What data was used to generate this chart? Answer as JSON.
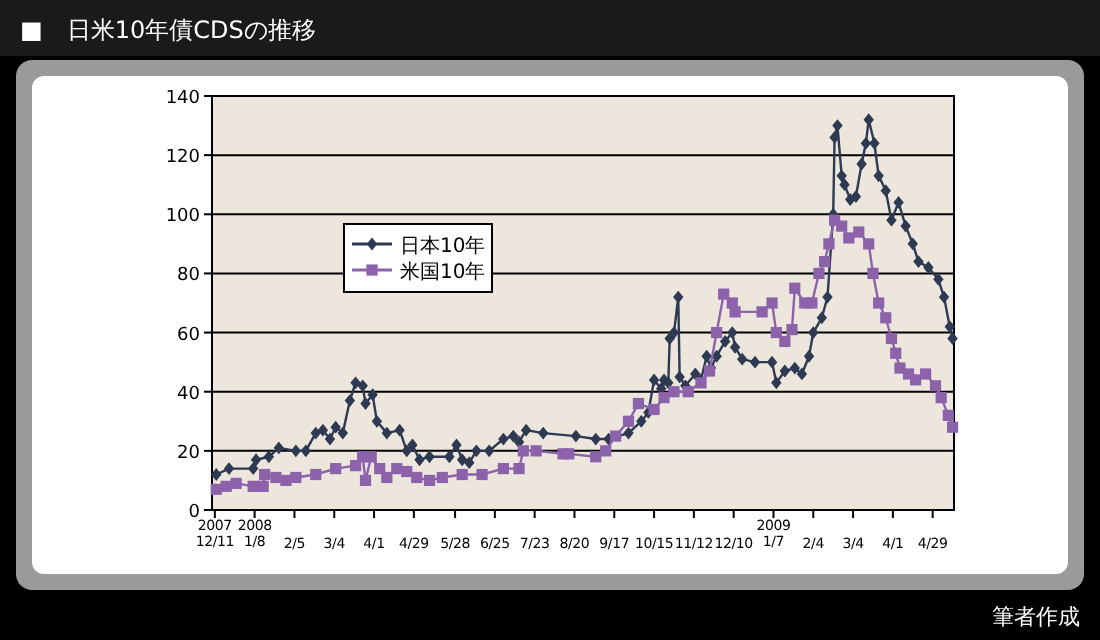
{
  "chart_data": {
    "type": "line",
    "title": "■　日米10年債CDSの推移",
    "annotations": [
      "筆者作成"
    ],
    "legend": "left",
    "grid": "y",
    "line_style": "solid",
    "ylim": [
      0,
      140
    ],
    "yticks": [
      0,
      20,
      40,
      60,
      80,
      100,
      120,
      140
    ],
    "xlim": [
      "2007-12-09",
      "2009-05-14"
    ],
    "xticks": [
      {
        "value": "2007-12-11",
        "label": "2007\n12/11"
      },
      {
        "value": "2008-01-08",
        "label": "2008\n1/8"
      },
      {
        "value": "2008-02-05",
        "label": "2/5"
      },
      {
        "value": "2008-03-04",
        "label": "3/4"
      },
      {
        "value": "2008-04-01",
        "label": "4/1"
      },
      {
        "value": "2008-04-29",
        "label": "4/29"
      },
      {
        "value": "2008-05-28",
        "label": "5/28"
      },
      {
        "value": "2008-06-25",
        "label": "6/25"
      },
      {
        "value": "2008-07-23",
        "label": "7/23"
      },
      {
        "value": "2008-08-20",
        "label": "8/20"
      },
      {
        "value": "2008-09-17",
        "label": "9/17"
      },
      {
        "value": "2008-10-15",
        "label": "10/15"
      },
      {
        "value": "2008-11-12",
        "label": "11/12"
      },
      {
        "value": "2008-12-10",
        "label": "12/10"
      },
      {
        "value": "2009-01-07",
        "label": "2009\n1/7"
      },
      {
        "value": "2009-02-04",
        "label": "2/4"
      },
      {
        "value": "2009-03-04",
        "label": "3/4"
      },
      {
        "value": "2009-04-01",
        "label": "4/1"
      },
      {
        "value": "2009-04-29",
        "label": "4/29"
      }
    ],
    "series": [
      {
        "name": "日本10年",
        "color": "#2d3a52",
        "marker": "diamond",
        "x": [
          "2007-12-12",
          "2007-12-21",
          "2008-01-07",
          "2008-01-09",
          "2008-01-18",
          "2008-01-25",
          "2008-02-06",
          "2008-02-13",
          "2008-02-20",
          "2008-02-25",
          "2008-03-01",
          "2008-03-05",
          "2008-03-10",
          "2008-03-15",
          "2008-03-19",
          "2008-03-24",
          "2008-03-26",
          "2008-03-31",
          "2008-04-03",
          "2008-04-10",
          "2008-04-19",
          "2008-04-24",
          "2008-04-28",
          "2008-05-03",
          "2008-05-10",
          "2008-05-24",
          "2008-05-29",
          "2008-06-02",
          "2008-06-07",
          "2008-06-12",
          "2008-06-21",
          "2008-07-01",
          "2008-07-08",
          "2008-07-12",
          "2008-07-17",
          "2008-07-29",
          "2008-08-21",
          "2008-09-04",
          "2008-09-13",
          "2008-09-27",
          "2008-10-06",
          "2008-10-11",
          "2008-10-15",
          "2008-10-20",
          "2008-10-22",
          "2008-10-25",
          "2008-10-26",
          "2008-10-29",
          "2008-11-01",
          "2008-11-02",
          "2008-11-06",
          "2008-11-13",
          "2008-11-17",
          "2008-11-21",
          "2008-11-24",
          "2008-11-28",
          "2008-12-04",
          "2008-12-09",
          "2008-12-11",
          "2008-12-16",
          "2008-12-25",
          "2009-01-06",
          "2009-01-09",
          "2009-01-15",
          "2009-01-22",
          "2009-01-27",
          "2009-02-01",
          "2009-02-04",
          "2009-02-10",
          "2009-02-14",
          "2009-02-18",
          "2009-02-19",
          "2009-02-21",
          "2009-02-24",
          "2009-02-26",
          "2009-03-02",
          "2009-03-06",
          "2009-03-10",
          "2009-03-13",
          "2009-03-15",
          "2009-03-19",
          "2009-03-22",
          "2009-03-27",
          "2009-03-31",
          "2009-04-05",
          "2009-04-10",
          "2009-04-15",
          "2009-04-19",
          "2009-04-26",
          "2009-05-03",
          "2009-05-07",
          "2009-05-11",
          "2009-05-13"
        ],
        "values": [
          12,
          14,
          14,
          17,
          18,
          21,
          20,
          20,
          26,
          27,
          24,
          28,
          26,
          37,
          43,
          42,
          36,
          39,
          30,
          26,
          27,
          20,
          22,
          17,
          18,
          18,
          22,
          17,
          16,
          20,
          20,
          24,
          25,
          23,
          27,
          26,
          25,
          24,
          24,
          26,
          30,
          33,
          44,
          41,
          44,
          43,
          58,
          60,
          72,
          45,
          42,
          46,
          44,
          52,
          48,
          52,
          57,
          60,
          55,
          51,
          50,
          50,
          43,
          47,
          48,
          46,
          52,
          60,
          65,
          72,
          100,
          126,
          130,
          113,
          110,
          105,
          106,
          117,
          124,
          132,
          124,
          113,
          108,
          98,
          104,
          96,
          90,
          84,
          82,
          78,
          72,
          62,
          58
        ]
      },
      {
        "name": "米国10年",
        "color": "#8c62aa",
        "marker": "square",
        "x": [
          "2007-12-12",
          "2007-12-19",
          "2007-12-26",
          "2008-01-07",
          "2008-01-14",
          "2008-01-15",
          "2008-01-23",
          "2008-01-30",
          "2008-02-06",
          "2008-02-20",
          "2008-03-05",
          "2008-03-19",
          "2008-03-24",
          "2008-03-26",
          "2008-03-30",
          "2008-04-05",
          "2008-04-10",
          "2008-04-17",
          "2008-04-24",
          "2008-05-01",
          "2008-05-10",
          "2008-05-19",
          "2008-06-02",
          "2008-06-16",
          "2008-07-01",
          "2008-07-12",
          "2008-07-15",
          "2008-07-24",
          "2008-08-12",
          "2008-08-16",
          "2008-09-04",
          "2008-09-11",
          "2008-09-18",
          "2008-09-27",
          "2008-10-04",
          "2008-10-15",
          "2008-10-22",
          "2008-10-29",
          "2008-11-08",
          "2008-11-17",
          "2008-11-23",
          "2008-11-28",
          "2008-12-03",
          "2008-12-09",
          "2008-12-11",
          "2008-12-30",
          "2009-01-06",
          "2009-01-09",
          "2009-01-15",
          "2009-01-20",
          "2009-01-22",
          "2009-01-29",
          "2009-02-03",
          "2009-02-08",
          "2009-02-12",
          "2009-02-15",
          "2009-02-19",
          "2009-02-24",
          "2009-03-01",
          "2009-03-08",
          "2009-03-15",
          "2009-03-18",
          "2009-03-22",
          "2009-03-27",
          "2009-03-31",
          "2009-04-03",
          "2009-04-06",
          "2009-04-12",
          "2009-04-17",
          "2009-04-24",
          "2009-05-01",
          "2009-05-05",
          "2009-05-10",
          "2009-05-13"
        ],
        "values": [
          7,
          8,
          9,
          8,
          8,
          12,
          11,
          10,
          11,
          12,
          14,
          15,
          18,
          10,
          18,
          14,
          11,
          14,
          13,
          11,
          10,
          11,
          12,
          12,
          14,
          14,
          20,
          20,
          19,
          19,
          18,
          20,
          25,
          30,
          36,
          34,
          38,
          40,
          40,
          43,
          47,
          60,
          73,
          70,
          67,
          67,
          70,
          60,
          57,
          61,
          75,
          70,
          70,
          80,
          84,
          90,
          98,
          96,
          92,
          94,
          90,
          80,
          70,
          65,
          58,
          53,
          48,
          46,
          44,
          46,
          42,
          38,
          32,
          28
        ]
      }
    ]
  }
}
